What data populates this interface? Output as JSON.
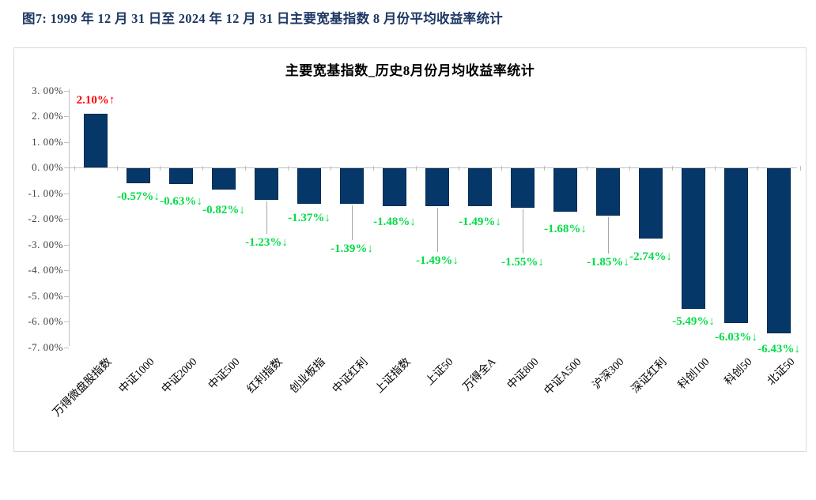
{
  "page": {
    "figure_title": "图7:  1999 年 12 月 31 日至 2024 年 12 月 31 日主要宽基指数 8 月份平均收益率统计"
  },
  "chart_data": {
    "type": "bar",
    "title": "主要宽基指数_历史8月份月均收益率统计",
    "xlabel": "",
    "ylabel": "",
    "ylim": [
      -7,
      3
    ],
    "grid": false,
    "legend": "none",
    "ytick_values": [
      3,
      2,
      1,
      0,
      -1,
      -2,
      -3,
      -4,
      -5,
      -6,
      -7
    ],
    "ytick_labels": [
      "3. 00%",
      "2. 00%",
      "1. 00%",
      "0. 00%",
      "-1. 00%",
      "-2. 00%",
      "-3. 00%",
      "-4. 00%",
      "-5. 00%",
      "-6. 00%",
      "-7. 00%"
    ],
    "categories": [
      "万得微盘股指数",
      "中证1000",
      "中证2000",
      "中证500",
      "红利指数",
      "创业板指",
      "中证红利",
      "上证指数",
      "上证50",
      "万得全A",
      "中证800",
      "中证A500",
      "沪深300",
      "深证红利",
      "科创100",
      "科创50",
      "北证50"
    ],
    "values": [
      2.1,
      -0.57,
      -0.63,
      -0.82,
      -1.23,
      -1.37,
      -1.39,
      -1.48,
      -1.49,
      -1.49,
      -1.55,
      -1.68,
      -1.85,
      -2.74,
      -5.49,
      -6.03,
      -6.43
    ],
    "labels": [
      "2.10%↑",
      "-0.57%↓",
      "-0.63%↓",
      "-0.82%↓",
      "-1.23%↓",
      "-1.37%↓",
      "-1.39%↓",
      "-1.48%↓",
      "-1.49%↓",
      "-1.49%↓",
      "-1.55%↓",
      "-1.68%↓",
      "-1.85%↓",
      "-2.74%↓",
      "-5.49%↓",
      "-6.03%↓",
      "-6.43%↓"
    ],
    "label_offsets": [
      -25,
      10,
      15,
      19,
      47,
      11,
      50,
      13,
      62,
      13,
      62,
      15,
      52,
      16,
      9,
      11,
      13
    ],
    "leaders": [
      false,
      false,
      false,
      false,
      true,
      false,
      true,
      false,
      true,
      false,
      true,
      false,
      true,
      false,
      false,
      false,
      false
    ],
    "colors": {
      "bar_fill": "#063769",
      "bar_border": "#042B54",
      "positive_label": "#FF0000",
      "negative_label": "#00DC46",
      "axis_line": "#BFBFBF",
      "leader_line": "#A6A6A6",
      "figure_title": "#1F3864",
      "chart_title": "#000000",
      "ytick_text": "#404040"
    }
  }
}
